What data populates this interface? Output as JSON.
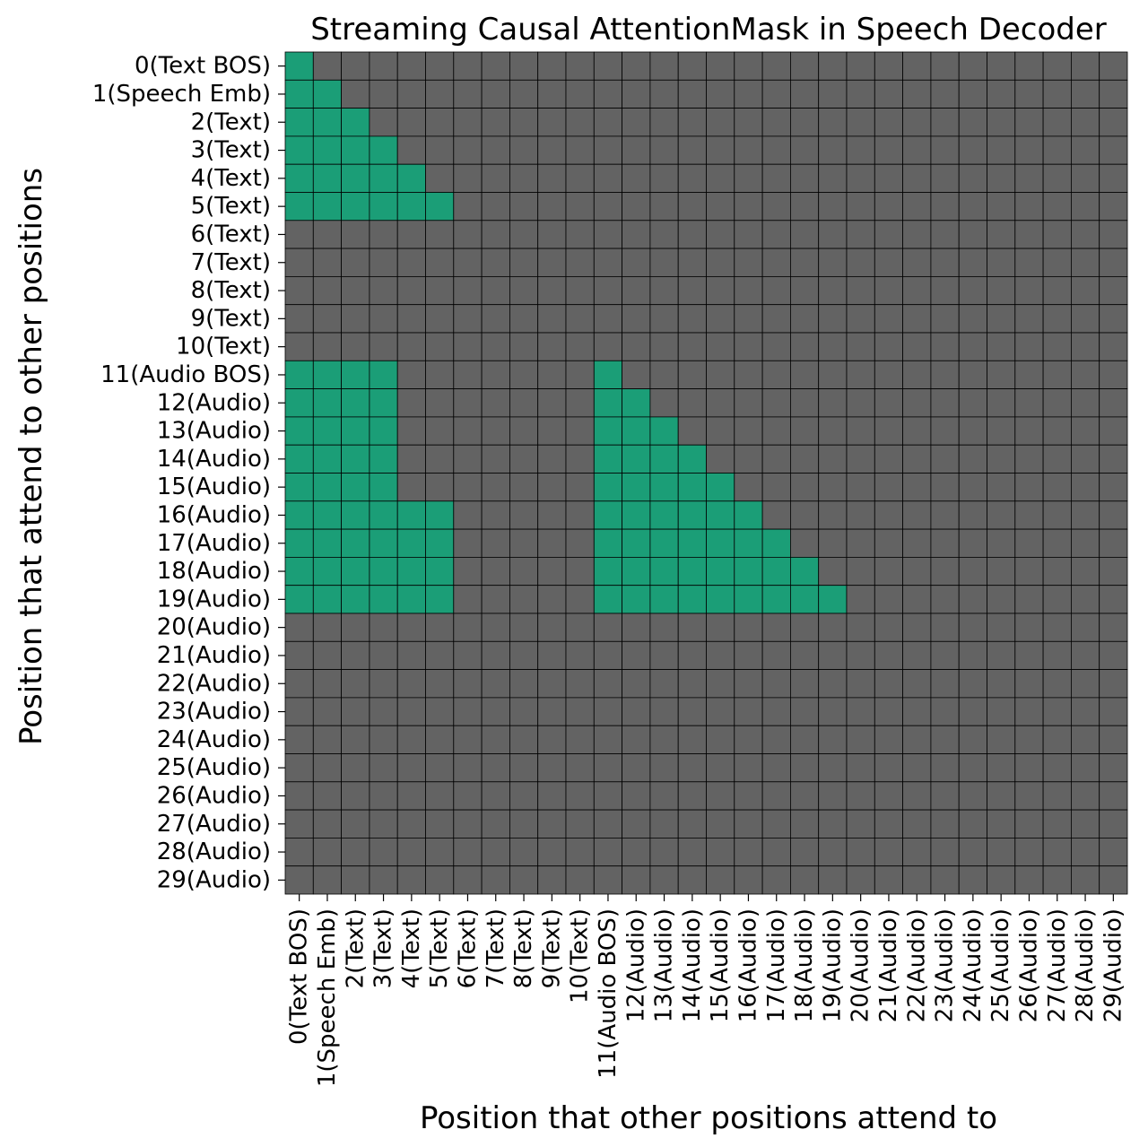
{
  "chart_data": {
    "type": "heatmap",
    "title": "Streaming Causal AttentionMask in Speech Decoder",
    "xlabel": "Position that other positions attend to",
    "ylabel": "Position that attend to other positions",
    "row_labels": [
      "0(Text BOS)",
      "1(Speech Emb)",
      "2(Text)",
      "3(Text)",
      "4(Text)",
      "5(Text)",
      "6(Text)",
      "7(Text)",
      "8(Text)",
      "9(Text)",
      "10(Text)",
      "11(Audio BOS)",
      "12(Audio)",
      "13(Audio)",
      "14(Audio)",
      "15(Audio)",
      "16(Audio)",
      "17(Audio)",
      "18(Audio)",
      "19(Audio)",
      "20(Audio)",
      "21(Audio)",
      "22(Audio)",
      "23(Audio)",
      "24(Audio)",
      "25(Audio)",
      "26(Audio)",
      "27(Audio)",
      "28(Audio)",
      "29(Audio)"
    ],
    "col_labels": [
      "0(Text BOS)",
      "1(Speech Emb)",
      "2(Text)",
      "3(Text)",
      "4(Text)",
      "5(Text)",
      "6(Text)",
      "7(Text)",
      "8(Text)",
      "9(Text)",
      "10(Text)",
      "11(Audio BOS)",
      "12(Audio)",
      "13(Audio)",
      "14(Audio)",
      "15(Audio)",
      "16(Audio)",
      "17(Audio)",
      "18(Audio)",
      "19(Audio)",
      "20(Audio)",
      "21(Audio)",
      "22(Audio)",
      "23(Audio)",
      "24(Audio)",
      "25(Audio)",
      "26(Audio)",
      "27(Audio)",
      "28(Audio)",
      "29(Audio)"
    ],
    "mask": [
      [
        1,
        0,
        0,
        0,
        0,
        0,
        0,
        0,
        0,
        0,
        0,
        0,
        0,
        0,
        0,
        0,
        0,
        0,
        0,
        0,
        0,
        0,
        0,
        0,
        0,
        0,
        0,
        0,
        0,
        0
      ],
      [
        1,
        1,
        0,
        0,
        0,
        0,
        0,
        0,
        0,
        0,
        0,
        0,
        0,
        0,
        0,
        0,
        0,
        0,
        0,
        0,
        0,
        0,
        0,
        0,
        0,
        0,
        0,
        0,
        0,
        0
      ],
      [
        1,
        1,
        1,
        0,
        0,
        0,
        0,
        0,
        0,
        0,
        0,
        0,
        0,
        0,
        0,
        0,
        0,
        0,
        0,
        0,
        0,
        0,
        0,
        0,
        0,
        0,
        0,
        0,
        0,
        0
      ],
      [
        1,
        1,
        1,
        1,
        0,
        0,
        0,
        0,
        0,
        0,
        0,
        0,
        0,
        0,
        0,
        0,
        0,
        0,
        0,
        0,
        0,
        0,
        0,
        0,
        0,
        0,
        0,
        0,
        0,
        0
      ],
      [
        1,
        1,
        1,
        1,
        1,
        0,
        0,
        0,
        0,
        0,
        0,
        0,
        0,
        0,
        0,
        0,
        0,
        0,
        0,
        0,
        0,
        0,
        0,
        0,
        0,
        0,
        0,
        0,
        0,
        0
      ],
      [
        1,
        1,
        1,
        1,
        1,
        1,
        0,
        0,
        0,
        0,
        0,
        0,
        0,
        0,
        0,
        0,
        0,
        0,
        0,
        0,
        0,
        0,
        0,
        0,
        0,
        0,
        0,
        0,
        0,
        0
      ],
      [
        0,
        0,
        0,
        0,
        0,
        0,
        0,
        0,
        0,
        0,
        0,
        0,
        0,
        0,
        0,
        0,
        0,
        0,
        0,
        0,
        0,
        0,
        0,
        0,
        0,
        0,
        0,
        0,
        0,
        0
      ],
      [
        0,
        0,
        0,
        0,
        0,
        0,
        0,
        0,
        0,
        0,
        0,
        0,
        0,
        0,
        0,
        0,
        0,
        0,
        0,
        0,
        0,
        0,
        0,
        0,
        0,
        0,
        0,
        0,
        0,
        0
      ],
      [
        0,
        0,
        0,
        0,
        0,
        0,
        0,
        0,
        0,
        0,
        0,
        0,
        0,
        0,
        0,
        0,
        0,
        0,
        0,
        0,
        0,
        0,
        0,
        0,
        0,
        0,
        0,
        0,
        0,
        0
      ],
      [
        0,
        0,
        0,
        0,
        0,
        0,
        0,
        0,
        0,
        0,
        0,
        0,
        0,
        0,
        0,
        0,
        0,
        0,
        0,
        0,
        0,
        0,
        0,
        0,
        0,
        0,
        0,
        0,
        0,
        0
      ],
      [
        0,
        0,
        0,
        0,
        0,
        0,
        0,
        0,
        0,
        0,
        0,
        0,
        0,
        0,
        0,
        0,
        0,
        0,
        0,
        0,
        0,
        0,
        0,
        0,
        0,
        0,
        0,
        0,
        0,
        0
      ],
      [
        1,
        1,
        1,
        1,
        0,
        0,
        0,
        0,
        0,
        0,
        0,
        1,
        0,
        0,
        0,
        0,
        0,
        0,
        0,
        0,
        0,
        0,
        0,
        0,
        0,
        0,
        0,
        0,
        0,
        0
      ],
      [
        1,
        1,
        1,
        1,
        0,
        0,
        0,
        0,
        0,
        0,
        0,
        1,
        1,
        0,
        0,
        0,
        0,
        0,
        0,
        0,
        0,
        0,
        0,
        0,
        0,
        0,
        0,
        0,
        0,
        0
      ],
      [
        1,
        1,
        1,
        1,
        0,
        0,
        0,
        0,
        0,
        0,
        0,
        1,
        1,
        1,
        0,
        0,
        0,
        0,
        0,
        0,
        0,
        0,
        0,
        0,
        0,
        0,
        0,
        0,
        0,
        0
      ],
      [
        1,
        1,
        1,
        1,
        0,
        0,
        0,
        0,
        0,
        0,
        0,
        1,
        1,
        1,
        1,
        0,
        0,
        0,
        0,
        0,
        0,
        0,
        0,
        0,
        0,
        0,
        0,
        0,
        0,
        0
      ],
      [
        1,
        1,
        1,
        1,
        0,
        0,
        0,
        0,
        0,
        0,
        0,
        1,
        1,
        1,
        1,
        1,
        0,
        0,
        0,
        0,
        0,
        0,
        0,
        0,
        0,
        0,
        0,
        0,
        0,
        0
      ],
      [
        1,
        1,
        1,
        1,
        1,
        1,
        0,
        0,
        0,
        0,
        0,
        1,
        1,
        1,
        1,
        1,
        1,
        0,
        0,
        0,
        0,
        0,
        0,
        0,
        0,
        0,
        0,
        0,
        0,
        0
      ],
      [
        1,
        1,
        1,
        1,
        1,
        1,
        0,
        0,
        0,
        0,
        0,
        1,
        1,
        1,
        1,
        1,
        1,
        1,
        0,
        0,
        0,
        0,
        0,
        0,
        0,
        0,
        0,
        0,
        0,
        0
      ],
      [
        1,
        1,
        1,
        1,
        1,
        1,
        0,
        0,
        0,
        0,
        0,
        1,
        1,
        1,
        1,
        1,
        1,
        1,
        1,
        0,
        0,
        0,
        0,
        0,
        0,
        0,
        0,
        0,
        0,
        0
      ],
      [
        1,
        1,
        1,
        1,
        1,
        1,
        0,
        0,
        0,
        0,
        0,
        1,
        1,
        1,
        1,
        1,
        1,
        1,
        1,
        1,
        0,
        0,
        0,
        0,
        0,
        0,
        0,
        0,
        0,
        0
      ],
      [
        0,
        0,
        0,
        0,
        0,
        0,
        0,
        0,
        0,
        0,
        0,
        0,
        0,
        0,
        0,
        0,
        0,
        0,
        0,
        0,
        0,
        0,
        0,
        0,
        0,
        0,
        0,
        0,
        0,
        0
      ],
      [
        0,
        0,
        0,
        0,
        0,
        0,
        0,
        0,
        0,
        0,
        0,
        0,
        0,
        0,
        0,
        0,
        0,
        0,
        0,
        0,
        0,
        0,
        0,
        0,
        0,
        0,
        0,
        0,
        0,
        0
      ],
      [
        0,
        0,
        0,
        0,
        0,
        0,
        0,
        0,
        0,
        0,
        0,
        0,
        0,
        0,
        0,
        0,
        0,
        0,
        0,
        0,
        0,
        0,
        0,
        0,
        0,
        0,
        0,
        0,
        0,
        0
      ],
      [
        0,
        0,
        0,
        0,
        0,
        0,
        0,
        0,
        0,
        0,
        0,
        0,
        0,
        0,
        0,
        0,
        0,
        0,
        0,
        0,
        0,
        0,
        0,
        0,
        0,
        0,
        0,
        0,
        0,
        0
      ],
      [
        0,
        0,
        0,
        0,
        0,
        0,
        0,
        0,
        0,
        0,
        0,
        0,
        0,
        0,
        0,
        0,
        0,
        0,
        0,
        0,
        0,
        0,
        0,
        0,
        0,
        0,
        0,
        0,
        0,
        0
      ],
      [
        0,
        0,
        0,
        0,
        0,
        0,
        0,
        0,
        0,
        0,
        0,
        0,
        0,
        0,
        0,
        0,
        0,
        0,
        0,
        0,
        0,
        0,
        0,
        0,
        0,
        0,
        0,
        0,
        0,
        0
      ],
      [
        0,
        0,
        0,
        0,
        0,
        0,
        0,
        0,
        0,
        0,
        0,
        0,
        0,
        0,
        0,
        0,
        0,
        0,
        0,
        0,
        0,
        0,
        0,
        0,
        0,
        0,
        0,
        0,
        0,
        0
      ],
      [
        0,
        0,
        0,
        0,
        0,
        0,
        0,
        0,
        0,
        0,
        0,
        0,
        0,
        0,
        0,
        0,
        0,
        0,
        0,
        0,
        0,
        0,
        0,
        0,
        0,
        0,
        0,
        0,
        0,
        0
      ],
      [
        0,
        0,
        0,
        0,
        0,
        0,
        0,
        0,
        0,
        0,
        0,
        0,
        0,
        0,
        0,
        0,
        0,
        0,
        0,
        0,
        0,
        0,
        0,
        0,
        0,
        0,
        0,
        0,
        0,
        0
      ],
      [
        0,
        0,
        0,
        0,
        0,
        0,
        0,
        0,
        0,
        0,
        0,
        0,
        0,
        0,
        0,
        0,
        0,
        0,
        0,
        0,
        0,
        0,
        0,
        0,
        0,
        0,
        0,
        0,
        0,
        0
      ]
    ],
    "colors": {
      "attend": "#1b9e77",
      "masked": "#636363",
      "cell_border": "#000000"
    },
    "grid": true,
    "legend": "none"
  }
}
